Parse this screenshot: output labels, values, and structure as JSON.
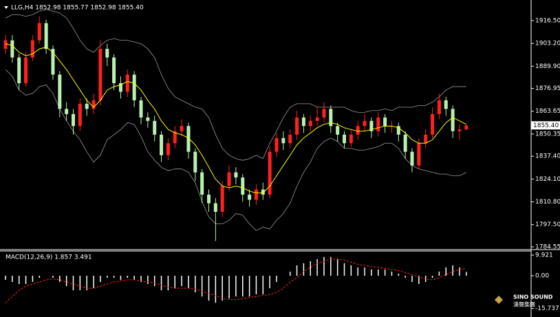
{
  "chart_data": [
    {
      "type": "candlestick",
      "title": "LLG,H4 1852.98 1855.77 1852.98 1855.40",
      "ylim": [
        1783.35,
        1924.5
      ],
      "yticks": [
        {
          "value": 1916.5,
          "label": "1916.50"
        },
        {
          "value": 1903.2,
          "label": "1903.20"
        },
        {
          "value": 1889.9,
          "label": "1889.90"
        },
        1876.95,
        1863.65,
        1850.35,
        {
          "value": 1837.4,
          "label": "1837.40"
        },
        {
          "value": 1824.1,
          "label": "1824.10"
        },
        {
          "value": 1810.8,
          "label": "1810.80"
        },
        {
          "value": 1797.5,
          "label": "1797.50"
        },
        1784.55
      ],
      "current_price": {
        "value": 1855.4,
        "label": "1855.40"
      },
      "up_color": "#ff2020",
      "down_color": "#b8f0b0",
      "open": [
        1900,
        1905,
        1895,
        1880,
        1895,
        1905,
        1915,
        1900,
        1885,
        1865,
        1862,
        1855,
        1868,
        1865,
        1870,
        1900,
        1895,
        1880,
        1875,
        1885,
        1870,
        1860,
        1858,
        1850,
        1838,
        1845,
        1852,
        1855,
        1840,
        1828,
        1815,
        1810,
        1805,
        1820,
        1828,
        1825,
        1815,
        1812,
        1818,
        1815,
        1840,
        1848,
        1845,
        1850,
        1860,
        1855,
        1858,
        1860,
        1865,
        1855,
        1850,
        1845,
        1850,
        1855,
        1858,
        1852,
        1860,
        1855,
        1855,
        1850,
        1840,
        1832,
        1845,
        1850,
        1862,
        1870,
        1865,
        1852,
        1852.98
      ],
      "high": [
        1908,
        1908,
        1897,
        1898,
        1908,
        1919,
        1917,
        1902,
        1887,
        1869,
        1865,
        1871,
        1871,
        1874,
        1905,
        1903,
        1897,
        1884,
        1888,
        1887,
        1872,
        1863,
        1861,
        1852,
        1848,
        1855,
        1859,
        1857,
        1842,
        1830,
        1818,
        1813,
        1823,
        1832,
        1831,
        1827,
        1818,
        1821,
        1822,
        1843,
        1851,
        1852,
        1853,
        1864,
        1862,
        1861,
        1866,
        1869,
        1867,
        1857,
        1852,
        1853,
        1858,
        1862,
        1860,
        1863,
        1862,
        1858,
        1857,
        1852,
        1842,
        1848,
        1853,
        1866,
        1874,
        1872,
        1867,
        1856,
        1855.77
      ],
      "low": [
        1897,
        1892,
        1876,
        1878,
        1893,
        1903,
        1897,
        1882,
        1860,
        1858,
        1850,
        1852,
        1861,
        1862,
        1867,
        1890,
        1876,
        1871,
        1872,
        1866,
        1856,
        1854,
        1846,
        1834,
        1835,
        1842,
        1849,
        1836,
        1823,
        1810,
        1805,
        1788,
        1802,
        1817,
        1821,
        1811,
        1808,
        1809,
        1812,
        1813,
        1837,
        1841,
        1842,
        1847,
        1851,
        1852,
        1855,
        1857,
        1851,
        1846,
        1842,
        1843,
        1847,
        1852,
        1848,
        1849,
        1851,
        1851,
        1846,
        1836,
        1828,
        1830,
        1842,
        1848,
        1859,
        1861,
        1848,
        1847,
        1852.98
      ],
      "close": [
        1905,
        1895,
        1880,
        1895,
        1905,
        1915,
        1900,
        1885,
        1865,
        1862,
        1855,
        1868,
        1865,
        1870,
        1900,
        1895,
        1880,
        1875,
        1885,
        1870,
        1860,
        1858,
        1850,
        1838,
        1845,
        1852,
        1855,
        1840,
        1828,
        1815,
        1810,
        1805,
        1820,
        1828,
        1825,
        1815,
        1812,
        1818,
        1815,
        1840,
        1848,
        1845,
        1850,
        1860,
        1855,
        1858,
        1860,
        1865,
        1855,
        1850,
        1845,
        1850,
        1855,
        1858,
        1852,
        1860,
        1855,
        1855,
        1850,
        1840,
        1832,
        1845,
        1850,
        1862,
        1870,
        1865,
        1852,
        1852.98,
        1855.4
      ],
      "ma": {
        "color": "#ffff00",
        "values": [
          1903,
          1902,
          1898,
          1896,
          1897,
          1900,
          1901,
          1898,
          1893,
          1888,
          1882,
          1876,
          1870,
          1866,
          1870,
          1876,
          1878,
          1879,
          1881,
          1880,
          1876,
          1870,
          1865,
          1858,
          1853,
          1851,
          1850,
          1848,
          1844,
          1838,
          1831,
          1824,
          1820,
          1819,
          1820,
          1819,
          1817,
          1816,
          1816,
          1820,
          1826,
          1832,
          1838,
          1844,
          1848,
          1851,
          1854,
          1856,
          1857,
          1856,
          1854,
          1853,
          1852,
          1852,
          1853,
          1854,
          1855,
          1855,
          1854,
          1851,
          1847,
          1845,
          1845,
          1847,
          1852,
          1857,
          1860,
          1858,
          1856
        ]
      },
      "bands": {
        "color": "#9a9a9a",
        "upper": [
          1918,
          1920,
          1920,
          1919,
          1920,
          1922,
          1923,
          1922,
          1921,
          1918,
          1912,
          1905,
          1900,
          1898,
          1902,
          1905,
          1906,
          1905,
          1905,
          1904,
          1903,
          1900,
          1895,
          1885,
          1877,
          1872,
          1870,
          1868,
          1866,
          1865,
          1860,
          1850,
          1842,
          1838,
          1836,
          1835,
          1836,
          1838,
          1836,
          1845,
          1852,
          1860,
          1866,
          1868,
          1868,
          1868,
          1866,
          1866,
          1866,
          1866,
          1866,
          1864,
          1863,
          1863,
          1864,
          1864,
          1865,
          1864,
          1866,
          1866,
          1866,
          1867,
          1867,
          1869,
          1872,
          1876,
          1878,
          1878,
          1878
        ],
        "lower": [
          1888,
          1884,
          1876,
          1873,
          1874,
          1878,
          1879,
          1874,
          1865,
          1858,
          1852,
          1847,
          1840,
          1834,
          1838,
          1847,
          1850,
          1853,
          1857,
          1856,
          1849,
          1840,
          1835,
          1831,
          1829,
          1830,
          1830,
          1828,
          1822,
          1811,
          1802,
          1798,
          1798,
          1800,
          1804,
          1803,
          1798,
          1794,
          1796,
          1795,
          1800,
          1804,
          1810,
          1820,
          1828,
          1834,
          1842,
          1846,
          1848,
          1846,
          1842,
          1842,
          1841,
          1841,
          1842,
          1843,
          1845,
          1845,
          1842,
          1836,
          1832,
          1830,
          1829,
          1828,
          1827,
          1827,
          1826,
          1826,
          1828
        ]
      }
    },
    {
      "type": "macd",
      "title": "MACD(12,26,9) 1.857 3.491",
      "ylim": [
        -18.87,
        11.91
      ],
      "yticks": [
        9.921,
        {
          "value": 0,
          "label": "0.00"
        },
        -15.737
      ],
      "histogram": {
        "color": "#ffffff",
        "values": [
          -2,
          -3,
          -4,
          -4,
          -3,
          -1,
          0,
          -1,
          -3,
          -5,
          -7,
          -7,
          -7,
          -6,
          -3,
          -1,
          -1,
          -2,
          -1,
          -2,
          -3,
          -4,
          -5,
          -7,
          -7,
          -6,
          -5,
          -6,
          -8,
          -10,
          -12,
          -13,
          -12,
          -11,
          -10,
          -10,
          -10,
          -9,
          -9,
          -6,
          -3,
          0,
          2,
          5,
          6,
          7,
          8,
          9,
          9,
          8,
          6,
          5,
          4,
          4,
          3,
          3,
          3,
          2,
          1,
          -1,
          -3,
          -4,
          -3,
          -1,
          2,
          4,
          5,
          4,
          1.857
        ]
      },
      "signal": {
        "color": "#ff2020",
        "values": [
          -13,
          -10,
          -7,
          -5,
          -4,
          -3,
          -2,
          -1.5,
          -2,
          -3,
          -4,
          -5,
          -6,
          -6,
          -5,
          -4,
          -3,
          -2.5,
          -2,
          -2,
          -2.5,
          -3,
          -3.5,
          -4.5,
          -5.5,
          -6,
          -6,
          -6,
          -6.5,
          -7.5,
          -8.5,
          -9.5,
          -11,
          -11.5,
          -11.5,
          -11,
          -10.5,
          -10,
          -9.5,
          -9,
          -8,
          -6,
          -3,
          -1,
          2,
          4,
          6,
          7,
          8,
          8,
          7.5,
          6.5,
          5.5,
          5,
          4.5,
          4,
          3.5,
          3,
          2.5,
          1.5,
          0.5,
          -0.5,
          -1.5,
          -2,
          -1,
          0.5,
          2,
          3,
          3.491
        ]
      }
    }
  ],
  "logo": {
    "name": "SINO SOUND",
    "subtitle": "漢聲集團"
  }
}
